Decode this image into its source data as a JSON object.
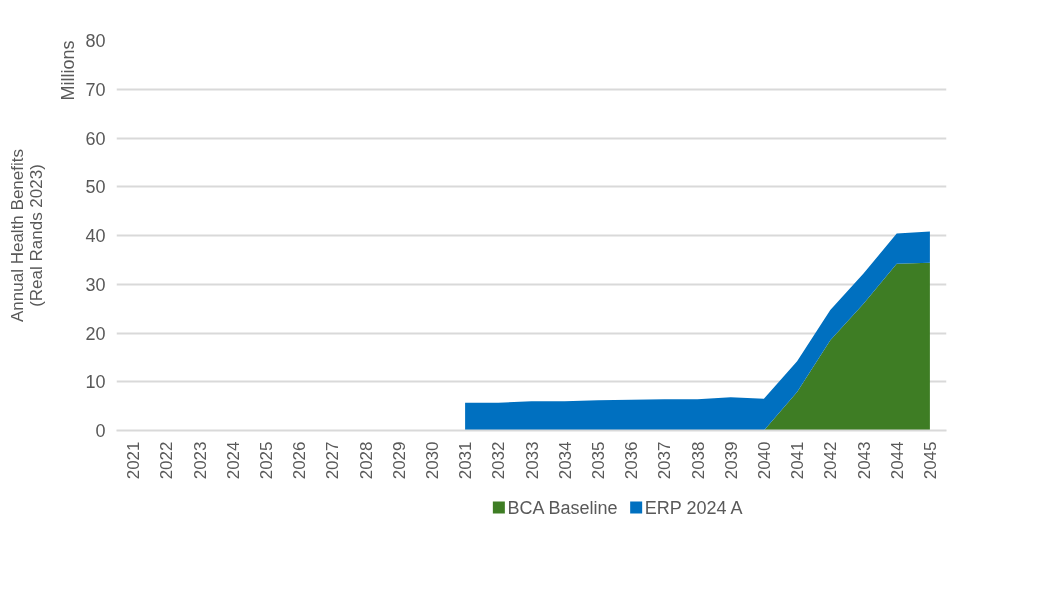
{
  "chart_data": {
    "type": "area",
    "stacked": true,
    "ylabel": "Annual Health Benefits\n(Real Rands 2023)",
    "annotations": [
      "Millions"
    ],
    "categories": [
      "2021",
      "2022",
      "2023",
      "2024",
      "2025",
      "2026",
      "2027",
      "2028",
      "2029",
      "2030",
      "2031",
      "2032",
      "2033",
      "2034",
      "2035",
      "2036",
      "2037",
      "2038",
      "2039",
      "2040",
      "2041",
      "2042",
      "2043",
      "2044",
      "2045"
    ],
    "series": [
      {
        "name": "BCA Baseline",
        "color": "#3e7d24",
        "values": [
          null,
          null,
          null,
          null,
          null,
          null,
          null,
          null,
          null,
          null,
          null,
          null,
          null,
          null,
          null,
          null,
          null,
          null,
          null,
          0,
          7.9,
          18.5,
          26.0,
          34.2,
          34.4
        ]
      },
      {
        "name": "ERP 2024 A",
        "color": "#0070c0",
        "values": [
          null,
          null,
          null,
          null,
          null,
          null,
          null,
          null,
          null,
          null,
          5.7,
          5.7,
          6.0,
          6.0,
          6.2,
          6.3,
          6.4,
          6.4,
          6.8,
          6.5,
          6.3,
          6.2,
          6.2,
          6.2,
          6.4
        ]
      }
    ],
    "ylim": [
      0,
      80
    ],
    "yticks": [
      0,
      10,
      20,
      30,
      40,
      50,
      60,
      70,
      80
    ],
    "grid": "y",
    "legend": "bottom"
  }
}
